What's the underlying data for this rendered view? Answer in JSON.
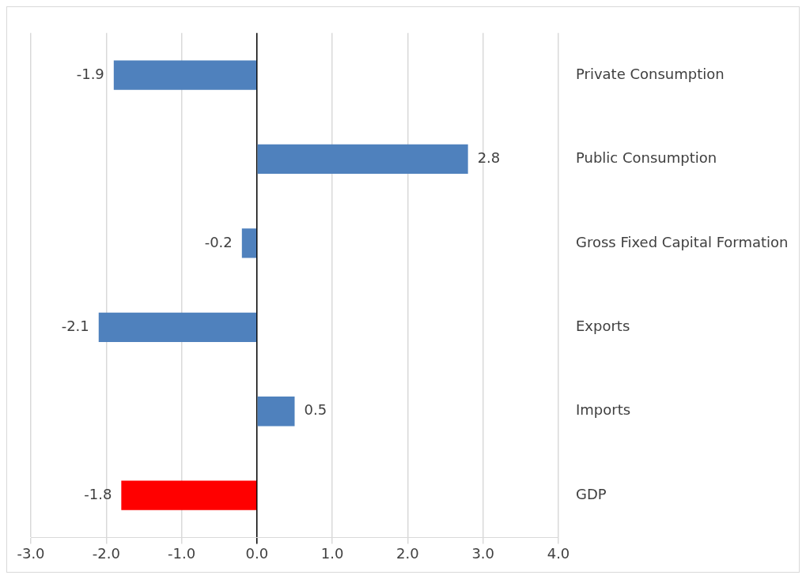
{
  "chart_data": {
    "type": "bar",
    "orientation": "horizontal",
    "categories": [
      "Private Consumption",
      "Public Consumption",
      "Gross Fixed Capital Formation",
      "Exports",
      "Imports",
      "GDP"
    ],
    "values": [
      -1.9,
      2.8,
      -0.2,
      -2.1,
      0.5,
      -1.8
    ],
    "colors": [
      "#4f81bd",
      "#4f81bd",
      "#4f81bd",
      "#4f81bd",
      "#4f81bd",
      "#ff0000"
    ],
    "xlim": [
      -3,
      4
    ],
    "xticks": [
      {
        "value": -3,
        "label": "-3.0"
      },
      {
        "value": -2,
        "label": "-2.0"
      },
      {
        "value": -1,
        "label": "-1.0"
      },
      {
        "value": 0,
        "label": "0.0"
      },
      {
        "value": 1,
        "label": "1.0"
      },
      {
        "value": 2,
        "label": "2.0"
      },
      {
        "value": 3,
        "label": "3.0"
      },
      {
        "value": 4,
        "label": "4.0"
      }
    ],
    "data_labels": true,
    "grid": "x",
    "legend": false
  }
}
